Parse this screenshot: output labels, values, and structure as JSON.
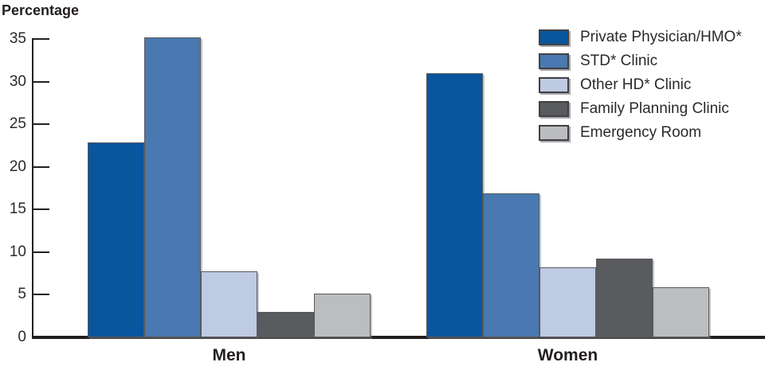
{
  "chart_data": {
    "type": "bar",
    "title": "Percentage",
    "categories": [
      "Men",
      "Women"
    ],
    "series": [
      {
        "name": "Private Physician/HMO*",
        "color": "#08569e",
        "values": [
          22.9,
          31.0
        ]
      },
      {
        "name": "STD* Clinic",
        "color": "#4979b0",
        "values": [
          35.2,
          16.9
        ]
      },
      {
        "name": "Other HD* Clinic",
        "color": "#bfcae3",
        "values": [
          7.7,
          8.2
        ]
      },
      {
        "name": "Family Planning Clinic",
        "color": "#595b5e",
        "values": [
          3.0,
          9.2
        ]
      },
      {
        "name": "Emergency Room",
        "color": "#bbbdc0",
        "values": [
          5.1,
          5.9
        ]
      }
    ],
    "yticks": [
      0,
      5,
      10,
      15,
      20,
      25,
      30,
      35
    ],
    "ylim": [
      0,
      35
    ],
    "xlabel": "",
    "ylabel": "Percentage",
    "grid": false,
    "legend_position": "top-right",
    "axis_color": "#231f20"
  }
}
